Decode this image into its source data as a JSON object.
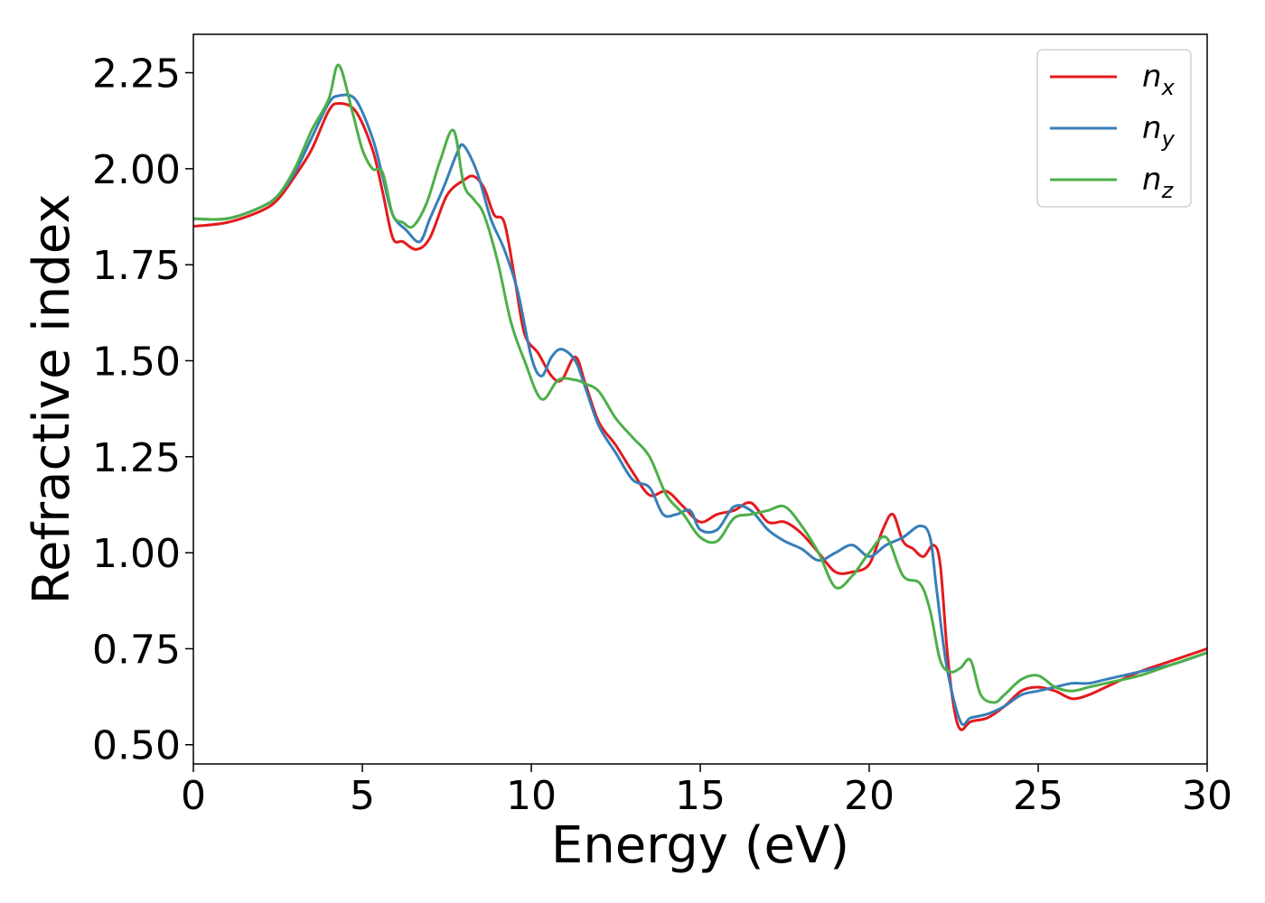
{
  "chart_data": {
    "type": "line",
    "title": "",
    "xlabel": "Energy (eV)",
    "ylabel": "Refractive index",
    "xlim": [
      0,
      30
    ],
    "ylim": [
      0.45,
      2.35
    ],
    "xticks": [
      0,
      5,
      10,
      15,
      20,
      25,
      30
    ],
    "xtick_labels": [
      "0",
      "5",
      "10",
      "15",
      "20",
      "25",
      "30"
    ],
    "yticks": [
      0.5,
      0.75,
      1.0,
      1.25,
      1.5,
      1.75,
      2.0,
      2.25
    ],
    "ytick_labels": [
      "0.50",
      "0.75",
      "1.00",
      "1.25",
      "1.50",
      "1.75",
      "2.00",
      "2.25"
    ],
    "grid": false,
    "legend_position": "top-right",
    "series": [
      {
        "name": "n_x",
        "name_base": "n",
        "name_sub": "x",
        "color": "#e41a1c",
        "x": [
          0,
          1,
          2,
          2.5,
          3,
          3.5,
          4,
          4.3,
          4.8,
          5.3,
          5.6,
          5.9,
          6.2,
          6.6,
          7.0,
          7.5,
          8.0,
          8.3,
          8.6,
          8.9,
          9.2,
          9.5,
          9.8,
          10.2,
          10.6,
          10.9,
          11.3,
          11.6,
          12.0,
          12.5,
          13.0,
          13.5,
          14.0,
          14.5,
          15.0,
          15.5,
          16.0,
          16.5,
          17.0,
          17.5,
          18.0,
          18.5,
          19.0,
          19.5,
          20.0,
          20.4,
          20.7,
          21.0,
          21.3,
          21.6,
          21.9,
          22.1,
          22.3,
          22.5,
          22.7,
          23.0,
          23.5,
          24.0,
          24.5,
          25.0,
          25.5,
          26.0,
          26.5,
          27.0,
          28.0,
          29.0,
          30.0
        ],
        "y": [
          1.85,
          1.86,
          1.89,
          1.92,
          1.98,
          2.05,
          2.15,
          2.17,
          2.15,
          2.05,
          1.94,
          1.82,
          1.81,
          1.79,
          1.82,
          1.93,
          1.97,
          1.98,
          1.95,
          1.88,
          1.86,
          1.72,
          1.57,
          1.52,
          1.46,
          1.45,
          1.51,
          1.44,
          1.34,
          1.28,
          1.21,
          1.15,
          1.16,
          1.12,
          1.08,
          1.1,
          1.11,
          1.13,
          1.08,
          1.08,
          1.05,
          1.0,
          0.95,
          0.95,
          0.97,
          1.06,
          1.1,
          1.03,
          1.01,
          0.99,
          1.02,
          0.97,
          0.75,
          0.6,
          0.54,
          0.56,
          0.57,
          0.6,
          0.64,
          0.65,
          0.64,
          0.62,
          0.63,
          0.65,
          0.69,
          0.72,
          0.75
        ]
      },
      {
        "name": "n_y",
        "name_base": "n",
        "name_sub": "y",
        "color": "#377eb8",
        "x": [
          0,
          1,
          2,
          2.5,
          3,
          3.5,
          4,
          4.3,
          4.8,
          5.3,
          5.6,
          5.9,
          6.3,
          6.7,
          7.0,
          7.4,
          7.8,
          8.0,
          8.4,
          8.8,
          9.2,
          9.6,
          10.0,
          10.3,
          10.6,
          10.9,
          11.3,
          11.6,
          12.0,
          12.5,
          13.0,
          13.5,
          13.9,
          14.3,
          14.7,
          15.0,
          15.5,
          16.0,
          16.5,
          17.0,
          17.5,
          18.0,
          18.5,
          19.0,
          19.5,
          20.0,
          20.5,
          21.0,
          21.5,
          21.8,
          22.0,
          22.3,
          22.7,
          23.0,
          23.5,
          24.0,
          24.5,
          25.0,
          25.5,
          26.0,
          26.5,
          27.0,
          28.0,
          29.0,
          30.0
        ],
        "y": [
          1.87,
          1.87,
          1.9,
          1.93,
          1.99,
          2.08,
          2.17,
          2.19,
          2.18,
          2.08,
          1.98,
          1.88,
          1.84,
          1.81,
          1.87,
          1.95,
          2.04,
          2.06,
          1.99,
          1.87,
          1.79,
          1.68,
          1.51,
          1.46,
          1.51,
          1.53,
          1.5,
          1.43,
          1.33,
          1.26,
          1.19,
          1.17,
          1.1,
          1.1,
          1.11,
          1.06,
          1.06,
          1.12,
          1.11,
          1.06,
          1.03,
          1.01,
          0.98,
          1.0,
          1.02,
          0.99,
          1.02,
          1.04,
          1.07,
          1.04,
          0.9,
          0.7,
          0.56,
          0.57,
          0.58,
          0.6,
          0.63,
          0.64,
          0.65,
          0.66,
          0.66,
          0.67,
          0.69,
          0.71,
          0.74
        ]
      },
      {
        "name": "n_z",
        "name_base": "n",
        "name_sub": "z",
        "color": "#4daf4a",
        "x": [
          0,
          1,
          2,
          2.5,
          3,
          3.5,
          4,
          4.3,
          4.7,
          5.0,
          5.3,
          5.6,
          5.9,
          6.2,
          6.5,
          6.9,
          7.3,
          7.7,
          8.0,
          8.3,
          8.6,
          9.0,
          9.4,
          9.8,
          10.3,
          10.8,
          11.3,
          11.6,
          12.0,
          12.5,
          13.0,
          13.5,
          14.0,
          14.5,
          15.0,
          15.5,
          16.0,
          16.5,
          17.0,
          17.5,
          18.0,
          18.5,
          19.0,
          19.5,
          20.0,
          20.5,
          21.0,
          21.5,
          21.8,
          22.1,
          22.4,
          22.7,
          23.0,
          23.3,
          23.7,
          24.0,
          24.5,
          25.0,
          25.5,
          26.0,
          26.5,
          27.0,
          28.0,
          29.0,
          30.0
        ],
        "y": [
          1.87,
          1.87,
          1.9,
          1.93,
          2.0,
          2.1,
          2.18,
          2.27,
          2.15,
          2.05,
          2.0,
          1.99,
          1.88,
          1.86,
          1.85,
          1.91,
          2.02,
          2.1,
          1.96,
          1.92,
          1.88,
          1.76,
          1.6,
          1.5,
          1.4,
          1.45,
          1.45,
          1.44,
          1.42,
          1.35,
          1.3,
          1.25,
          1.15,
          1.1,
          1.04,
          1.03,
          1.09,
          1.1,
          1.11,
          1.12,
          1.07,
          1.0,
          0.91,
          0.94,
          1.0,
          1.04,
          0.94,
          0.92,
          0.85,
          0.72,
          0.69,
          0.7,
          0.72,
          0.63,
          0.61,
          0.63,
          0.67,
          0.68,
          0.65,
          0.64,
          0.65,
          0.66,
          0.68,
          0.71,
          0.74
        ]
      }
    ]
  }
}
